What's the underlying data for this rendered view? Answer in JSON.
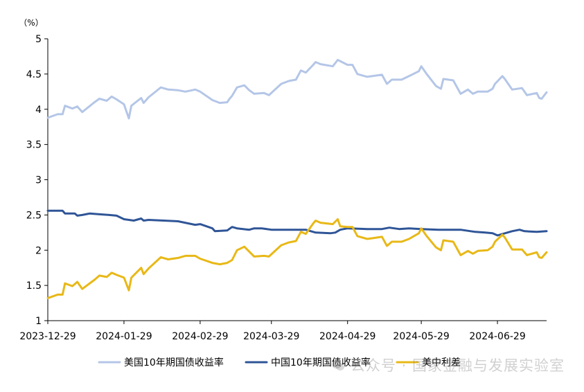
{
  "chart_data": {
    "type": "line",
    "yunit": "（%）",
    "ylim": [
      1,
      5
    ],
    "yticks": [
      "1",
      "1.5",
      "2",
      "2.5",
      "3",
      "3.5",
      "4",
      "4.5",
      "5"
    ],
    "xticks": [
      "2023-12-29",
      "2024-01-29",
      "2024-02-29",
      "2024-03-29",
      "2024-04-29",
      "2024-05-29",
      "2024-06-29"
    ],
    "xrange": [
      "2023-12-29",
      "2024-07-19"
    ],
    "grid": false,
    "legend_position": "bottom",
    "series": [
      {
        "name": "美国10年期国债收益率",
        "color": "#b4c6e7",
        "points": [
          [
            "2023-12-29",
            3.88
          ],
          [
            "2024-01-02",
            3.93
          ],
          [
            "2024-01-04",
            3.93
          ],
          [
            "2024-01-05",
            4.05
          ],
          [
            "2024-01-08",
            4.01
          ],
          [
            "2024-01-10",
            4.04
          ],
          [
            "2024-01-12",
            3.96
          ],
          [
            "2024-01-17",
            4.1
          ],
          [
            "2024-01-19",
            4.15
          ],
          [
            "2024-01-22",
            4.12
          ],
          [
            "2024-01-24",
            4.18
          ],
          [
            "2024-01-26",
            4.14
          ],
          [
            "2024-01-29",
            4.07
          ],
          [
            "2024-01-31",
            3.87
          ],
          [
            "2024-02-01",
            4.05
          ],
          [
            "2024-02-05",
            4.16
          ],
          [
            "2024-02-06",
            4.09
          ],
          [
            "2024-02-08",
            4.17
          ],
          [
            "2024-02-13",
            4.31
          ],
          [
            "2024-02-16",
            4.28
          ],
          [
            "2024-02-20",
            4.27
          ],
          [
            "2024-02-23",
            4.25
          ],
          [
            "2024-02-27",
            4.28
          ],
          [
            "2024-02-29",
            4.25
          ],
          [
            "2024-03-05",
            4.13
          ],
          [
            "2024-03-08",
            4.09
          ],
          [
            "2024-03-11",
            4.1
          ],
          [
            "2024-03-12",
            4.15
          ],
          [
            "2024-03-13",
            4.19
          ],
          [
            "2024-03-15",
            4.31
          ],
          [
            "2024-03-18",
            4.34
          ],
          [
            "2024-03-20",
            4.27
          ],
          [
            "2024-03-22",
            4.22
          ],
          [
            "2024-03-26",
            4.23
          ],
          [
            "2024-03-28",
            4.2
          ],
          [
            "2024-04-02",
            4.36
          ],
          [
            "2024-04-05",
            4.4
          ],
          [
            "2024-04-08",
            4.42
          ],
          [
            "2024-04-10",
            4.55
          ],
          [
            "2024-04-12",
            4.52
          ],
          [
            "2024-04-15",
            4.63
          ],
          [
            "2024-04-16",
            4.67
          ],
          [
            "2024-04-18",
            4.64
          ],
          [
            "2024-04-23",
            4.61
          ],
          [
            "2024-04-25",
            4.7
          ],
          [
            "2024-04-29",
            4.63
          ],
          [
            "2024-05-01",
            4.63
          ],
          [
            "2024-05-03",
            4.5
          ],
          [
            "2024-05-07",
            4.46
          ],
          [
            "2024-05-09",
            4.47
          ],
          [
            "2024-05-13",
            4.49
          ],
          [
            "2024-05-15",
            4.36
          ],
          [
            "2024-05-17",
            4.42
          ],
          [
            "2024-05-21",
            4.42
          ],
          [
            "2024-05-24",
            4.47
          ],
          [
            "2024-05-28",
            4.54
          ],
          [
            "2024-05-29",
            4.61
          ],
          [
            "2024-05-31",
            4.51
          ],
          [
            "2024-06-04",
            4.33
          ],
          [
            "2024-06-06",
            4.29
          ],
          [
            "2024-06-07",
            4.43
          ],
          [
            "2024-06-11",
            4.41
          ],
          [
            "2024-06-14",
            4.22
          ],
          [
            "2024-06-17",
            4.28
          ],
          [
            "2024-06-19",
            4.22
          ],
          [
            "2024-06-21",
            4.25
          ],
          [
            "2024-06-25",
            4.25
          ],
          [
            "2024-06-27",
            4.29
          ],
          [
            "2024-06-28",
            4.36
          ],
          [
            "2024-07-01",
            4.47
          ],
          [
            "2024-07-02",
            4.43
          ],
          [
            "2024-07-05",
            4.28
          ],
          [
            "2024-07-09",
            4.3
          ],
          [
            "2024-07-11",
            4.2
          ],
          [
            "2024-07-15",
            4.23
          ],
          [
            "2024-07-16",
            4.16
          ],
          [
            "2024-07-17",
            4.15
          ],
          [
            "2024-07-19",
            4.24
          ]
        ]
      },
      {
        "name": "中国10年期国债收益率",
        "color": "#2f5597",
        "points": [
          [
            "2023-12-29",
            2.56
          ],
          [
            "2024-01-04",
            2.56
          ],
          [
            "2024-01-05",
            2.52
          ],
          [
            "2024-01-09",
            2.52
          ],
          [
            "2024-01-10",
            2.49
          ],
          [
            "2024-01-12",
            2.5
          ],
          [
            "2024-01-15",
            2.52
          ],
          [
            "2024-01-19",
            2.51
          ],
          [
            "2024-01-23",
            2.5
          ],
          [
            "2024-01-26",
            2.49
          ],
          [
            "2024-01-29",
            2.44
          ],
          [
            "2024-02-02",
            2.42
          ],
          [
            "2024-02-05",
            2.45
          ],
          [
            "2024-02-06",
            2.42
          ],
          [
            "2024-02-08",
            2.43
          ],
          [
            "2024-02-20",
            2.41
          ],
          [
            "2024-02-27",
            2.36
          ],
          [
            "2024-02-29",
            2.37
          ],
          [
            "2024-03-05",
            2.31
          ],
          [
            "2024-03-06",
            2.27
          ],
          [
            "2024-03-11",
            2.28
          ],
          [
            "2024-03-13",
            2.33
          ],
          [
            "2024-03-15",
            2.31
          ],
          [
            "2024-03-20",
            2.29
          ],
          [
            "2024-03-22",
            2.31
          ],
          [
            "2024-03-25",
            2.31
          ],
          [
            "2024-03-29",
            2.29
          ],
          [
            "2024-04-05",
            2.29
          ],
          [
            "2024-04-09",
            2.29
          ],
          [
            "2024-04-12",
            2.29
          ],
          [
            "2024-04-16",
            2.25
          ],
          [
            "2024-04-22",
            2.24
          ],
          [
            "2024-04-24",
            2.25
          ],
          [
            "2024-04-26",
            2.29
          ],
          [
            "2024-04-29",
            2.31
          ],
          [
            "2024-05-07",
            2.3
          ],
          [
            "2024-05-13",
            2.3
          ],
          [
            "2024-05-16",
            2.32
          ],
          [
            "2024-05-20",
            2.3
          ],
          [
            "2024-05-24",
            2.31
          ],
          [
            "2024-05-29",
            2.3
          ],
          [
            "2024-06-05",
            2.29
          ],
          [
            "2024-06-14",
            2.29
          ],
          [
            "2024-06-20",
            2.26
          ],
          [
            "2024-06-24",
            2.25
          ],
          [
            "2024-06-27",
            2.24
          ],
          [
            "2024-06-29",
            2.21
          ],
          [
            "2024-07-03",
            2.25
          ],
          [
            "2024-07-05",
            2.27
          ],
          [
            "2024-07-08",
            2.29
          ],
          [
            "2024-07-10",
            2.27
          ],
          [
            "2024-07-15",
            2.26
          ],
          [
            "2024-07-19",
            2.27
          ]
        ]
      },
      {
        "name": "美中利差",
        "color": "#e8b816",
        "points": [
          [
            "2023-12-29",
            1.32
          ],
          [
            "2024-01-02",
            1.37
          ],
          [
            "2024-01-04",
            1.37
          ],
          [
            "2024-01-05",
            1.53
          ],
          [
            "2024-01-08",
            1.49
          ],
          [
            "2024-01-10",
            1.55
          ],
          [
            "2024-01-12",
            1.45
          ],
          [
            "2024-01-17",
            1.58
          ],
          [
            "2024-01-19",
            1.64
          ],
          [
            "2024-01-22",
            1.62
          ],
          [
            "2024-01-24",
            1.68
          ],
          [
            "2024-01-26",
            1.65
          ],
          [
            "2024-01-29",
            1.61
          ],
          [
            "2024-01-31",
            1.43
          ],
          [
            "2024-02-01",
            1.61
          ],
          [
            "2024-02-05",
            1.75
          ],
          [
            "2024-02-06",
            1.66
          ],
          [
            "2024-02-08",
            1.74
          ],
          [
            "2024-02-13",
            1.9
          ],
          [
            "2024-02-16",
            1.87
          ],
          [
            "2024-02-20",
            1.89
          ],
          [
            "2024-02-23",
            1.92
          ],
          [
            "2024-02-27",
            1.92
          ],
          [
            "2024-02-29",
            1.88
          ],
          [
            "2024-03-05",
            1.82
          ],
          [
            "2024-03-08",
            1.8
          ],
          [
            "2024-03-11",
            1.82
          ],
          [
            "2024-03-13",
            1.86
          ],
          [
            "2024-03-15",
            2.0
          ],
          [
            "2024-03-18",
            2.05
          ],
          [
            "2024-03-20",
            1.98
          ],
          [
            "2024-03-22",
            1.91
          ],
          [
            "2024-03-26",
            1.92
          ],
          [
            "2024-03-28",
            1.91
          ],
          [
            "2024-04-02",
            2.07
          ],
          [
            "2024-04-05",
            2.11
          ],
          [
            "2024-04-08",
            2.13
          ],
          [
            "2024-04-10",
            2.26
          ],
          [
            "2024-04-12",
            2.23
          ],
          [
            "2024-04-15",
            2.38
          ],
          [
            "2024-04-16",
            2.42
          ],
          [
            "2024-04-18",
            2.39
          ],
          [
            "2024-04-23",
            2.37
          ],
          [
            "2024-04-25",
            2.44
          ],
          [
            "2024-04-26",
            2.34
          ],
          [
            "2024-04-29",
            2.33
          ],
          [
            "2024-05-01",
            2.33
          ],
          [
            "2024-05-03",
            2.2
          ],
          [
            "2024-05-07",
            2.16
          ],
          [
            "2024-05-09",
            2.17
          ],
          [
            "2024-05-13",
            2.19
          ],
          [
            "2024-05-15",
            2.06
          ],
          [
            "2024-05-17",
            2.12
          ],
          [
            "2024-05-21",
            2.12
          ],
          [
            "2024-05-24",
            2.16
          ],
          [
            "2024-05-28",
            2.24
          ],
          [
            "2024-05-29",
            2.31
          ],
          [
            "2024-05-31",
            2.21
          ],
          [
            "2024-06-04",
            2.04
          ],
          [
            "2024-06-06",
            2.0
          ],
          [
            "2024-06-07",
            2.14
          ],
          [
            "2024-06-11",
            2.12
          ],
          [
            "2024-06-14",
            1.93
          ],
          [
            "2024-06-17",
            1.99
          ],
          [
            "2024-06-19",
            1.95
          ],
          [
            "2024-06-21",
            1.99
          ],
          [
            "2024-06-25",
            2.0
          ],
          [
            "2024-06-27",
            2.05
          ],
          [
            "2024-06-28",
            2.12
          ],
          [
            "2024-07-01",
            2.22
          ],
          [
            "2024-07-02",
            2.18
          ],
          [
            "2024-07-05",
            2.01
          ],
          [
            "2024-07-09",
            2.01
          ],
          [
            "2024-07-11",
            1.93
          ],
          [
            "2024-07-15",
            1.97
          ],
          [
            "2024-07-16",
            1.9
          ],
          [
            "2024-07-17",
            1.89
          ],
          [
            "2024-07-19",
            1.97
          ]
        ]
      }
    ]
  },
  "watermark": {
    "text": "公众号 · 国家金融与发展实验室"
  }
}
